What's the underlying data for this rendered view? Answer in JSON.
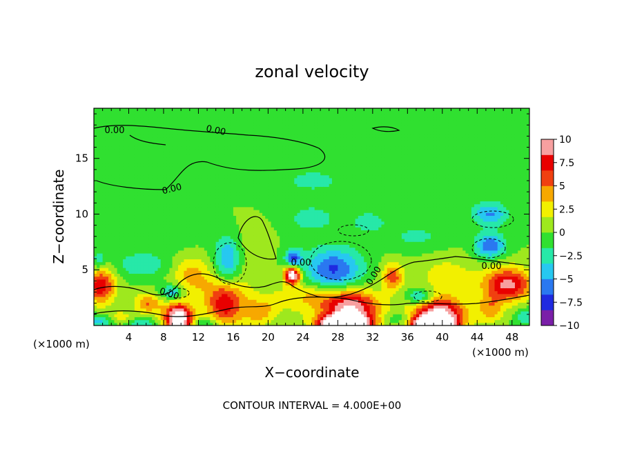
{
  "chart_data": {
    "type": "heatmap",
    "title": "zonal velocity",
    "xlabel": "X−coordinate",
    "ylabel": "Z−coordinate",
    "x_unit_left": "(×1000 m)",
    "x_unit_right": "(×1000 m)",
    "footer": "CONTOUR INTERVAL = 4.000E+00",
    "xlim": [
      0,
      50
    ],
    "ylim": [
      0,
      19.5
    ],
    "x_ticks": [
      4,
      8,
      12,
      16,
      20,
      24,
      28,
      32,
      36,
      40,
      44,
      48
    ],
    "x_tick_labels": [
      "4",
      "8",
      "12",
      "16",
      "20",
      "24",
      "28",
      "32",
      "36",
      "40",
      "44",
      "48"
    ],
    "y_ticks": [
      5,
      10,
      15
    ],
    "y_tick_labels": [
      "5",
      "10",
      "15"
    ],
    "colorbar": {
      "min": -10,
      "max": 10,
      "tick_values": [
        10,
        7.5,
        5,
        2.5,
        0,
        -2.5,
        -5,
        -7.5,
        -10
      ],
      "tick_labels": [
        "10",
        "7.5",
        "5",
        "2.5",
        "0",
        "−2.5",
        "−5",
        "−7.5",
        "−10"
      ],
      "colors": [
        "#7a1fa8",
        "#1f2ae0",
        "#2a78f0",
        "#27c8f0",
        "#27e8a8",
        "#30e030",
        "#9ee81e",
        "#f2f000",
        "#f7a800",
        "#f04010",
        "#e80000",
        "#f7a0a0"
      ]
    },
    "contour_labels": [
      "0.00",
      "0.00",
      "0.00",
      "0.00",
      "0.00",
      "0.00",
      "0.00"
    ],
    "field": {
      "background": 0,
      "features": [
        {
          "x": 0.8,
          "z": 3.6,
          "rx": 1.6,
          "rz": 1.6,
          "v": 8
        },
        {
          "x": 6.2,
          "z": 2.0,
          "rx": 1.6,
          "rz": 0.9,
          "v": 5
        },
        {
          "x": 9.7,
          "z": 0.6,
          "rx": 1.6,
          "rz": 1.4,
          "v": 13
        },
        {
          "x": 11.2,
          "z": 4.5,
          "rx": 2.2,
          "rz": 1.8,
          "v": 4
        },
        {
          "x": 15.0,
          "z": 2.1,
          "rx": 2.2,
          "rz": 2.2,
          "v": 8
        },
        {
          "x": 19.0,
          "z": 1.2,
          "rx": 1.8,
          "rz": 1.2,
          "v": 4
        },
        {
          "x": 22.8,
          "z": 4.6,
          "rx": 0.9,
          "rz": 0.8,
          "v": 13
        },
        {
          "x": 29.5,
          "z": 1.5,
          "rx": 3.2,
          "rz": 1.7,
          "v": 10
        },
        {
          "x": 28.7,
          "z": 0.2,
          "rx": 2.8,
          "rz": 0.7,
          "v": 16
        },
        {
          "x": 34.3,
          "z": 4.4,
          "rx": 1.2,
          "rz": 1.2,
          "v": 6
        },
        {
          "x": 39.6,
          "z": 1.0,
          "rx": 3.0,
          "rz": 1.6,
          "v": 11
        },
        {
          "x": 38.9,
          "z": 0.2,
          "rx": 2.2,
          "rz": 0.6,
          "v": 16
        },
        {
          "x": 47.5,
          "z": 3.7,
          "rx": 2.8,
          "rz": 1.5,
          "v": 9
        },
        {
          "x": 45.5,
          "z": 1.5,
          "rx": 1.5,
          "rz": 1.2,
          "v": 4
        },
        {
          "x": 40.5,
          "z": 4.6,
          "rx": 3.2,
          "rz": 1.6,
          "v": 2.5
        },
        {
          "x": 24.5,
          "z": 2.4,
          "rx": 5.0,
          "rz": 1.3,
          "v": 3
        },
        {
          "x": 17.0,
          "z": 6.0,
          "rx": 2.5,
          "rz": 3.0,
          "v": 1.5
        },
        {
          "x": 0.6,
          "z": 5.8,
          "rx": 0.8,
          "rz": 0.9,
          "v": -3
        },
        {
          "x": 5.6,
          "z": 5.4,
          "rx": 3.0,
          "rz": 1.0,
          "v": -3
        },
        {
          "x": 9.0,
          "z": 3.0,
          "rx": 1.3,
          "rz": 0.7,
          "v": -5
        },
        {
          "x": 15.4,
          "z": 5.8,
          "rx": 1.6,
          "rz": 2.3,
          "v": -6
        },
        {
          "x": 22.9,
          "z": 6.0,
          "rx": 0.9,
          "rz": 0.9,
          "v": -7
        },
        {
          "x": 27.5,
          "z": 5.0,
          "rx": 3.2,
          "rz": 2.0,
          "v": -7
        },
        {
          "x": 25.0,
          "z": 9.6,
          "rx": 2.5,
          "rz": 1.0,
          "v": -3
        },
        {
          "x": 37.5,
          "z": 2.6,
          "rx": 1.6,
          "rz": 0.7,
          "v": -5
        },
        {
          "x": 45.5,
          "z": 7.2,
          "rx": 1.7,
          "rz": 1.1,
          "v": -6.5
        },
        {
          "x": 45.5,
          "z": 10.0,
          "rx": 2.0,
          "rz": 1.0,
          "v": -5
        },
        {
          "x": 31.5,
          "z": 9.3,
          "rx": 2.2,
          "rz": 1.0,
          "v": -2.5
        },
        {
          "x": 37.0,
          "z": 8.0,
          "rx": 3.5,
          "rz": 1.2,
          "v": -2.0
        },
        {
          "x": 5.5,
          "z": 8.0,
          "rx": 6.0,
          "rz": 1.7,
          "v": -1.6
        },
        {
          "x": 25.0,
          "z": 13.0,
          "rx": 6.0,
          "rz": 2.0,
          "v": -1.8
        },
        {
          "x": 40.0,
          "z": 13.5,
          "rx": 8.0,
          "rz": 3.0,
          "v": -1.5
        },
        {
          "x": 10.0,
          "z": 15.5,
          "rx": 8.0,
          "rz": 2.5,
          "v": -1.3
        },
        {
          "x": 25.0,
          "z": 3.2,
          "rx": 2.5,
          "rz": 0.8,
          "v": 1.2
        },
        {
          "x": 0.4,
          "z": 0.4,
          "rx": 1.8,
          "rz": 0.6,
          "v": -4
        },
        {
          "x": 3.0,
          "z": 0.8,
          "rx": 1.5,
          "rz": 0.6,
          "v": 2.5
        },
        {
          "x": 5.5,
          "z": 0.2,
          "rx": 1.6,
          "rz": 0.5,
          "v": -3
        },
        {
          "x": 13.0,
          "z": 0.3,
          "rx": 1.5,
          "rz": 0.5,
          "v": -3
        },
        {
          "x": 35.0,
          "z": 0.6,
          "rx": 1.8,
          "rz": 0.6,
          "v": -2.5
        },
        {
          "x": 49.6,
          "z": 0.8,
          "rx": 1.2,
          "rz": 0.8,
          "v": -3
        }
      ]
    }
  }
}
